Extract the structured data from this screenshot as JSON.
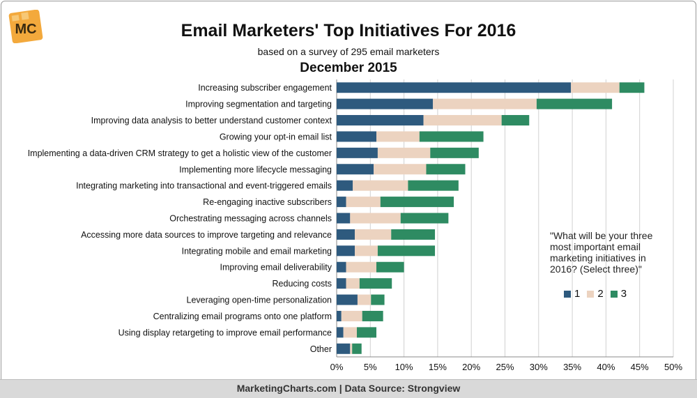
{
  "logo_text": "MC",
  "colors": {
    "s1": "#2e5a7e",
    "s2": "#ecd3c0",
    "s3": "#2e8b62",
    "logo_bg": "#f3a93c"
  },
  "quote": "\"What will be your three most important email marketing initiatives in 2016? (Select three)\"",
  "footer": "MarketingCharts.com | Data Source: Strongview",
  "chart_data": {
    "type": "bar",
    "orientation": "horizontal",
    "stacked": true,
    "title": "Email Marketers' Top Initiatives For 2016",
    "subtitle": "based on a survey of 295 email marketers",
    "date": "December 2015",
    "xlim": [
      0,
      50
    ],
    "xticks": [
      "0%",
      "5%",
      "10%",
      "15%",
      "20%",
      "25%",
      "30%",
      "35%",
      "40%",
      "45%",
      "50%"
    ],
    "grid": true,
    "legend_position": "right",
    "categories": [
      "Increasing subscriber engagement",
      "Improving segmentation and targeting",
      "Improving data analysis to better understand customer context",
      "Growing your opt-in email list",
      "Implementing a data-driven CRM strategy to get a holistic view of the customer",
      "Implementing more lifecycle messaging",
      "Integrating marketing into transactional and event-triggered emails",
      "Re-engaging inactive subscribers",
      "Orchestrating messaging across channels",
      "Accessing more data sources to improve targeting and relevance",
      "Integrating mobile and email marketing",
      "Improving email deliverability",
      "Reducing costs",
      "Leveraging open-time personalization",
      "Centralizing email programs onto one platform",
      "Using display retargeting to improve email performance",
      "Other"
    ],
    "series": [
      {
        "name": "1",
        "values": [
          34.8,
          14.3,
          12.9,
          5.9,
          6.1,
          5.5,
          2.4,
          1.4,
          2.0,
          2.7,
          2.7,
          1.4,
          1.4,
          3.1,
          0.7,
          1.0,
          2.0
        ]
      },
      {
        "name": "2",
        "values": [
          7.2,
          15.4,
          11.6,
          6.4,
          7.8,
          7.8,
          8.2,
          5.1,
          7.5,
          5.4,
          3.4,
          4.5,
          2.0,
          2.0,
          3.1,
          2.0,
          0.3
        ]
      },
      {
        "name": "3",
        "values": [
          3.7,
          11.2,
          4.1,
          9.5,
          7.2,
          5.8,
          7.5,
          10.9,
          7.1,
          6.5,
          8.5,
          4.1,
          4.8,
          2.0,
          3.1,
          2.9,
          1.4
        ]
      }
    ]
  }
}
